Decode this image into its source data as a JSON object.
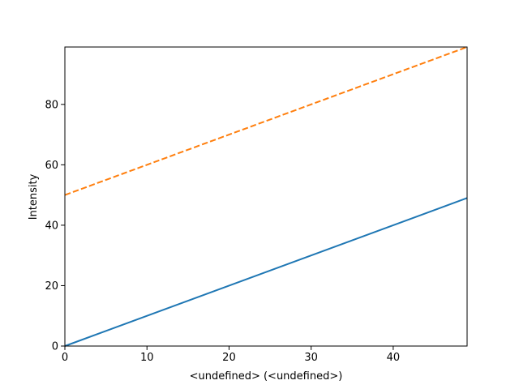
{
  "chart_data": {
    "type": "line",
    "title": "",
    "xlabel": "<undefined> (<undefined>)",
    "ylabel": "Intensity",
    "xlim": [
      0,
      49
    ],
    "ylim": [
      0,
      99
    ],
    "xticks": [
      0,
      10,
      20,
      30,
      40
    ],
    "yticks": [
      0,
      20,
      40,
      60,
      80
    ],
    "grid": false,
    "legend": "none",
    "series": [
      {
        "x": [
          0,
          49
        ],
        "y": [
          0,
          49
        ],
        "color": "#1f77b4",
        "linestyle": "solid"
      },
      {
        "x": [
          0,
          49
        ],
        "y": [
          50,
          99
        ],
        "color": "#ff7f0e",
        "linestyle": "dashed"
      }
    ]
  }
}
